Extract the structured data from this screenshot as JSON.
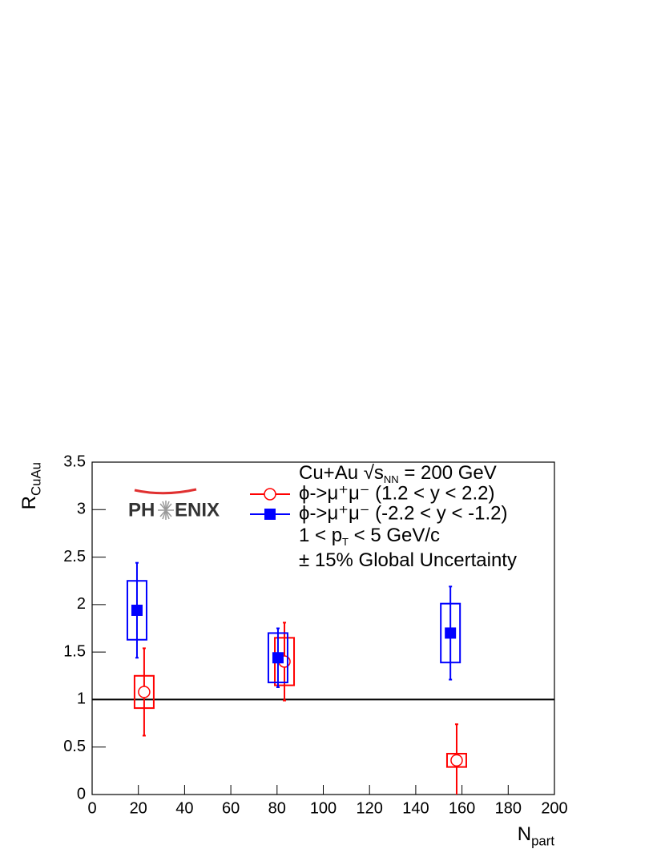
{
  "chart_data": {
    "type": "errorbar",
    "x_title": {
      "text": "N",
      "sub": "part"
    },
    "y_title": {
      "text": "R",
      "sub": "CuAu"
    },
    "xlim": [
      0,
      200
    ],
    "xticks": [
      0,
      20,
      40,
      60,
      80,
      100,
      120,
      140,
      160,
      180,
      200
    ],
    "ylim": [
      0,
      3.5
    ],
    "yticks": [
      0,
      0.5,
      1,
      1.5,
      2,
      2.5,
      3,
      3.5
    ],
    "reference_line": 1,
    "logo": [
      "PH",
      "ENIX"
    ],
    "annotations": [
      [
        {
          "text": "Cu+Au √s"
        },
        {
          "text": "NN",
          "shift": "sub"
        },
        {
          "text": " = 200 GeV"
        }
      ],
      [
        {
          "text": "1 < p"
        },
        {
          "text": "T",
          "shift": "sub"
        },
        {
          "text": " < 5 GeV/c"
        }
      ],
      [
        {
          "text": "± 15% Global Uncertainty"
        }
      ]
    ],
    "series": [
      {
        "name": "ϕ->μ⁺μ⁻ (1.2 < y < 2.2)",
        "color": "#ff0000",
        "marker": "open-circle",
        "x": [
          22.5,
          83.2,
          157.7
        ],
        "values": [
          1.08,
          1.4,
          0.36
        ],
        "errors": [
          0.46,
          0.41,
          0.38
        ],
        "sys_errors": [
          0.17,
          0.25,
          0.07
        ]
      },
      {
        "name": "ϕ->μ⁺μ⁻ (-2.2 < y < -1.2)",
        "color": "#0000ff",
        "marker": "filled-square",
        "x": [
          19.4,
          80.4,
          155
        ],
        "values": [
          1.94,
          1.44,
          1.7
        ],
        "errors": [
          0.5,
          0.31,
          0.49
        ],
        "sys_errors": [
          0.31,
          0.26,
          0.31
        ]
      }
    ]
  }
}
